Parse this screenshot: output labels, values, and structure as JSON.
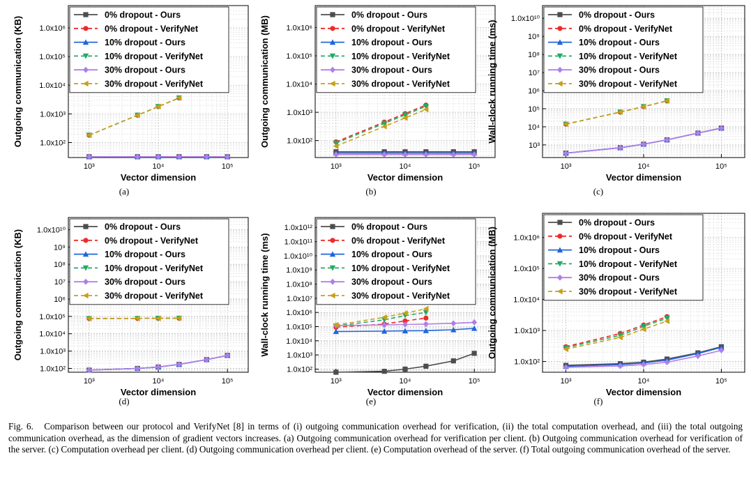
{
  "figure": {
    "caption_label": "Fig. 6.",
    "caption_text": "Comparison between our protocol and VerifyNet [8] in terms of (i) outgoing communication overhead for verification, (ii) the total computation overhead, and (iii) the total outgoing communication overhead, as the dimension of gradient vectors increases. (a) Outgoing communication overhead for verification per client. (b) Outgoing communication overhead for verification of the server. (c) Computation overhead per client. (d) Outgoing communication overhead per client. (e) Computation overhead of the server. (f) Total outgoing communication overhead of the server."
  },
  "styles": [
    {
      "color": "#4d4d4d",
      "dash": "none",
      "marker": "square"
    },
    {
      "color": "#ee2a2a",
      "dash": "6,4",
      "marker": "circle"
    },
    {
      "color": "#1f66dc",
      "dash": "none",
      "marker": "triangle-up"
    },
    {
      "color": "#22aa66",
      "dash": "6,4",
      "marker": "triangle-down"
    },
    {
      "color": "#b07ee8",
      "dash": "none",
      "marker": "diamond"
    },
    {
      "color": "#c8a018",
      "dash": "6,4",
      "marker": "triangle-left"
    }
  ],
  "chart_data": [
    {
      "type": "line",
      "sublabel": "(a)",
      "xlabel": "Vector dimension",
      "ylabel": "Outgoing communication (KB)",
      "xscale": "log",
      "yscale": "log",
      "xlim": [
        500,
        200000
      ],
      "ylim": [
        30,
        6000000
      ],
      "grid": true,
      "legend": "top-left",
      "xticks": [
        1000,
        10000,
        100000
      ],
      "xticklabels": [
        "10³",
        "10⁴",
        "10⁵"
      ],
      "yticks": [
        100,
        1000,
        10000,
        100000,
        1000000
      ],
      "yticklabels": [
        "1.0x10²",
        "1.0x10³",
        "1.0x10⁴",
        "1.0x10⁵",
        "1.0x10⁶"
      ],
      "series": [
        {
          "name": "0% dropout - Ours",
          "x": [
            1000,
            5000,
            10000,
            20000,
            50000,
            100000
          ],
          "y": [
            32,
            32,
            32,
            32,
            32,
            32
          ]
        },
        {
          "name": "0% dropout - VerifyNet",
          "x": [
            1000,
            5000,
            10000,
            20000
          ],
          "y": [
            180,
            900,
            1800,
            3600
          ]
        },
        {
          "name": "10% dropout - Ours",
          "x": [
            1000,
            5000,
            10000,
            20000,
            50000,
            100000
          ],
          "y": [
            32,
            32,
            32,
            32,
            32,
            32
          ]
        },
        {
          "name": "10% dropout - VerifyNet",
          "x": [
            1000,
            5000,
            10000,
            20000
          ],
          "y": [
            180,
            900,
            1800,
            3600
          ]
        },
        {
          "name": "30% dropout - Ours",
          "x": [
            1000,
            5000,
            10000,
            20000,
            50000,
            100000
          ],
          "y": [
            32,
            32,
            32,
            32,
            32,
            32
          ]
        },
        {
          "name": "30% dropout - VerifyNet",
          "x": [
            1000,
            5000,
            10000,
            20000
          ],
          "y": [
            180,
            900,
            1800,
            3600
          ]
        }
      ]
    },
    {
      "type": "line",
      "sublabel": "(b)",
      "xlabel": "Vector dimension",
      "ylabel": "Outgoing communication (MB)",
      "xscale": "log",
      "yscale": "log",
      "xlim": [
        500,
        200000
      ],
      "ylim": [
        25,
        6000000
      ],
      "grid": true,
      "legend": "top-left",
      "xticks": [
        1000,
        10000,
        100000
      ],
      "xticklabels": [
        "10³",
        "10⁴",
        "10⁵"
      ],
      "yticks": [
        100,
        1000,
        10000,
        100000,
        1000000
      ],
      "yticklabels": [
        "1.0x10²",
        "1.0x10³",
        "1.0x10⁴",
        "1.0x10⁵",
        "1.0x10⁶"
      ],
      "series": [
        {
          "name": "0% dropout - Ours",
          "x": [
            1000,
            5000,
            10000,
            20000,
            50000,
            100000
          ],
          "y": [
            40,
            40,
            40,
            40,
            40,
            40
          ]
        },
        {
          "name": "0% dropout - VerifyNet",
          "x": [
            1000,
            5000,
            10000,
            20000
          ],
          "y": [
            90,
            450,
            900,
            1800
          ]
        },
        {
          "name": "10% dropout - Ours",
          "x": [
            1000,
            5000,
            10000,
            20000,
            50000,
            100000
          ],
          "y": [
            36,
            36,
            36,
            36,
            36,
            36
          ]
        },
        {
          "name": "10% dropout - VerifyNet",
          "x": [
            1000,
            5000,
            10000,
            20000
          ],
          "y": [
            81,
            405,
            810,
            1620
          ]
        },
        {
          "name": "30% dropout - Ours",
          "x": [
            1000,
            5000,
            10000,
            20000,
            50000,
            100000
          ],
          "y": [
            32,
            32,
            32,
            32,
            32,
            32
          ]
        },
        {
          "name": "30% dropout - VerifyNet",
          "x": [
            1000,
            5000,
            10000,
            20000
          ],
          "y": [
            63,
            315,
            630,
            1260
          ]
        }
      ]
    },
    {
      "type": "line",
      "sublabel": "(c)",
      "xlabel": "Vector dimension",
      "ylabel": "Wall-clock running time (ms)",
      "xscale": "log",
      "yscale": "log",
      "xlim": [
        500,
        200000
      ],
      "ylim": [
        200,
        50000000000
      ],
      "grid": true,
      "legend": "top-left",
      "xticks": [
        1000,
        10000,
        100000
      ],
      "xticklabels": [
        "10³",
        "10⁴",
        "10⁵"
      ],
      "yticks": [
        1000,
        10000,
        100000,
        1000000,
        10000000,
        100000000,
        1000000000,
        10000000000
      ],
      "yticklabels": [
        "10³",
        "10⁴",
        "10⁵",
        "10⁶",
        "10⁷",
        "10⁸",
        "10⁹",
        "1.0x10¹⁰"
      ],
      "series": [
        {
          "name": "0% dropout - Ours",
          "x": [
            1000,
            5000,
            10000,
            20000,
            50000,
            100000
          ],
          "y": [
            350,
            700,
            1100,
            1900,
            4500,
            8500
          ]
        },
        {
          "name": "0% dropout - VerifyNet",
          "x": [
            1000,
            5000,
            10000,
            20000
          ],
          "y": [
            14000,
            65000,
            130000,
            270000
          ]
        },
        {
          "name": "10% dropout - Ours",
          "x": [
            1000,
            5000,
            10000,
            20000,
            50000,
            100000
          ],
          "y": [
            350,
            700,
            1100,
            1900,
            4500,
            8500
          ]
        },
        {
          "name": "10% dropout - VerifyNet",
          "x": [
            1000,
            5000,
            10000,
            20000
          ],
          "y": [
            14000,
            65000,
            130000,
            270000
          ]
        },
        {
          "name": "30% dropout - Ours",
          "x": [
            1000,
            5000,
            10000,
            20000,
            50000,
            100000
          ],
          "y": [
            350,
            700,
            1100,
            1900,
            4500,
            8500
          ]
        },
        {
          "name": "30% dropout - VerifyNet",
          "x": [
            1000,
            5000,
            10000,
            20000
          ],
          "y": [
            14000,
            65000,
            130000,
            270000
          ]
        }
      ]
    },
    {
      "type": "line",
      "sublabel": "(d)",
      "xlabel": "Vector dimension",
      "ylabel": "Outgoing communication (KB)",
      "xscale": "log",
      "yscale": "log",
      "xlim": [
        500,
        200000
      ],
      "ylim": [
        60,
        50000000000
      ],
      "grid": true,
      "legend": "top-left",
      "xticks": [
        1000,
        10000,
        100000
      ],
      "xticklabels": [
        "10³",
        "10⁴",
        "10⁵"
      ],
      "yticks": [
        100,
        1000,
        10000,
        100000,
        1000000,
        10000000,
        100000000,
        1000000000,
        10000000000
      ],
      "yticklabels": [
        "1.0x10²",
        "1.0x10³",
        "1.0x10⁴",
        "1.0x10⁵",
        "10⁶",
        "10⁷",
        "10⁸",
        "10⁹",
        "1.0x10¹⁰"
      ],
      "series": [
        {
          "name": "0% dropout - Ours",
          "x": [
            1000,
            5000,
            10000,
            20000,
            50000,
            100000
          ],
          "y": [
            80,
            100,
            120,
            170,
            320,
            560
          ]
        },
        {
          "name": "0% dropout - VerifyNet",
          "x": [
            1000,
            5000,
            10000,
            20000
          ],
          "y": [
            75000,
            76000,
            77000,
            78000
          ]
        },
        {
          "name": "10% dropout - Ours",
          "x": [
            1000,
            5000,
            10000,
            20000,
            50000,
            100000
          ],
          "y": [
            80,
            100,
            120,
            170,
            320,
            560
          ]
        },
        {
          "name": "10% dropout - VerifyNet",
          "x": [
            1000,
            5000,
            10000,
            20000
          ],
          "y": [
            75000,
            76000,
            77000,
            78000
          ]
        },
        {
          "name": "30% dropout - Ours",
          "x": [
            1000,
            5000,
            10000,
            20000,
            50000,
            100000
          ],
          "y": [
            80,
            100,
            120,
            170,
            320,
            560
          ]
        },
        {
          "name": "30% dropout - VerifyNet",
          "x": [
            1000,
            5000,
            10000,
            20000
          ],
          "y": [
            75000,
            76000,
            77000,
            78000
          ]
        }
      ]
    },
    {
      "type": "line",
      "sublabel": "(e)",
      "xlabel": "Vector dimension",
      "ylabel": "Wall-clock running time (ms)",
      "xscale": "log",
      "yscale": "log",
      "xlim": [
        500,
        200000
      ],
      "ylim": [
        60,
        5000000000000
      ],
      "grid": true,
      "legend": "top-left",
      "xticks": [
        1000,
        10000,
        100000
      ],
      "xticklabels": [
        "10³",
        "10⁴",
        "10⁵"
      ],
      "yticks": [
        100,
        1000,
        10000,
        100000,
        1000000,
        10000000,
        100000000,
        1000000000,
        10000000000,
        100000000000,
        1000000000000
      ],
      "yticklabels": [
        "1.0x10²",
        "1.0x10³",
        "1.0x10⁴",
        "1.0x10⁵",
        "1.0x10⁶",
        "1.0x10⁷",
        "1.0x10⁸",
        "1.0x10⁹",
        "1.0x10¹⁰",
        "1.0x10¹¹",
        "1.0x10¹²"
      ],
      "series": [
        {
          "name": "0% dropout - Ours",
          "x": [
            1000,
            5000,
            10000,
            20000,
            50000,
            100000
          ],
          "y": [
            60,
            70,
            100,
            160,
            380,
            1300
          ]
        },
        {
          "name": "0% dropout - VerifyNet",
          "x": [
            1000,
            5000,
            10000,
            20000
          ],
          "y": [
            90000,
            150000,
            250000,
            400000
          ]
        },
        {
          "name": "10% dropout - Ours",
          "x": [
            1000,
            5000,
            10000,
            20000,
            50000,
            100000
          ],
          "y": [
            45000,
            48000,
            50000,
            52000,
            60000,
            75000
          ]
        },
        {
          "name": "10% dropout - VerifyNet",
          "x": [
            1000,
            5000,
            10000,
            20000
          ],
          "y": [
            110000,
            300000,
            600000,
            1000000
          ]
        },
        {
          "name": "30% dropout - Ours",
          "x": [
            1000,
            5000,
            10000,
            20000,
            50000,
            100000
          ],
          "y": [
            120000,
            130000,
            140000,
            150000,
            170000,
            200000
          ]
        },
        {
          "name": "30% dropout - VerifyNet",
          "x": [
            1000,
            5000,
            10000,
            20000
          ],
          "y": [
            130000,
            450000,
            900000,
            1800000
          ]
        }
      ]
    },
    {
      "type": "line",
      "sublabel": "(f)",
      "xlabel": "Vector dimension",
      "ylabel": "Outgoing communication (MB)",
      "xscale": "log",
      "yscale": "log",
      "xlim": [
        500,
        200000
      ],
      "ylim": [
        45,
        6000000
      ],
      "grid": true,
      "legend": "top-left",
      "xticks": [
        1000,
        10000,
        100000
      ],
      "xticklabels": [
        "10³",
        "10⁴",
        "10⁵"
      ],
      "yticks": [
        100,
        1000,
        10000,
        100000,
        1000000
      ],
      "yticklabels": [
        "1.0x10²",
        "1.0x10³",
        "1.0x10⁴",
        "1.0x10⁵",
        "1.0x10⁶"
      ],
      "series": [
        {
          "name": "0% dropout - Ours",
          "x": [
            1000,
            5000,
            10000,
            20000,
            50000,
            100000
          ],
          "y": [
            75,
            85,
            95,
            120,
            190,
            300
          ]
        },
        {
          "name": "0% dropout - VerifyNet",
          "x": [
            1000,
            5000,
            10000,
            20000
          ],
          "y": [
            300,
            800,
            1500,
            2800
          ]
        },
        {
          "name": "10% dropout - Ours",
          "x": [
            1000,
            5000,
            10000,
            20000,
            50000,
            100000
          ],
          "y": [
            70,
            80,
            90,
            110,
            180,
            285
          ]
        },
        {
          "name": "10% dropout - VerifyNet",
          "x": [
            1000,
            5000,
            10000,
            20000
          ],
          "y": [
            280,
            700,
            1350,
            2500
          ]
        },
        {
          "name": "30% dropout - Ours",
          "x": [
            1000,
            5000,
            10000,
            20000,
            50000,
            100000
          ],
          "y": [
            65,
            72,
            80,
            95,
            150,
            230
          ]
        },
        {
          "name": "30% dropout - VerifyNet",
          "x": [
            1000,
            5000,
            10000,
            20000
          ],
          "y": [
            250,
            600,
            1100,
            2000
          ]
        }
      ]
    }
  ]
}
